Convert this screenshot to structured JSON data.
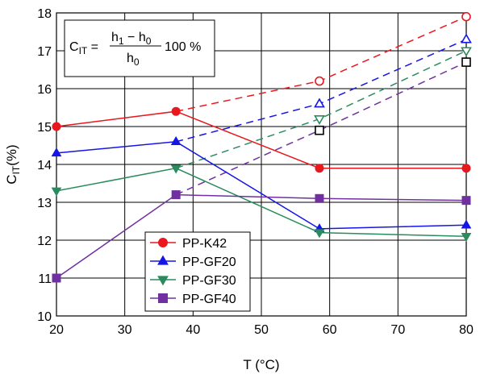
{
  "chart_data": {
    "type": "line",
    "xlabel": "T (°C)",
    "ylabel": {
      "main": "C",
      "sub": "IT",
      "unit": "(%)"
    },
    "xlim": [
      20,
      80
    ],
    "ylim": [
      10,
      18
    ],
    "xticks": [
      20,
      30,
      40,
      50,
      60,
      70,
      80
    ],
    "yticks": [
      10,
      11,
      12,
      13,
      14,
      15,
      16,
      17,
      18
    ],
    "grid": true,
    "legend_position": "bottom-left",
    "formula": {
      "lhs_main": "C",
      "lhs_sub": "IT",
      "numerator_a": "h",
      "numerator_a_sub": "1",
      "numerator_b": "h",
      "numerator_b_sub": "0",
      "denominator": "h",
      "denominator_sub": "0",
      "suffix": "100 %"
    },
    "series": [
      {
        "name": "PP-K42",
        "color": "#e8191e",
        "marker": "circle",
        "solid": [
          [
            20,
            15.0
          ],
          [
            37.5,
            15.4
          ],
          [
            58.5,
            13.9
          ],
          [
            80,
            13.9
          ]
        ],
        "dashed": [
          [
            37.5,
            15.4
          ],
          [
            58.5,
            16.2
          ],
          [
            80,
            17.9
          ]
        ],
        "open_markers": [
          [
            58.5,
            16.2
          ],
          [
            80,
            17.9
          ]
        ]
      },
      {
        "name": "PP-GF20",
        "color": "#1515e6",
        "marker": "triangle-up",
        "solid": [
          [
            20,
            14.3
          ],
          [
            37.5,
            14.6
          ],
          [
            58.5,
            12.3
          ],
          [
            80,
            12.4
          ]
        ],
        "dashed": [
          [
            37.5,
            14.6
          ],
          [
            58.5,
            15.6
          ],
          [
            80,
            17.3
          ]
        ],
        "open_markers": [
          [
            58.5,
            15.6
          ],
          [
            80,
            17.3
          ]
        ]
      },
      {
        "name": "PP-GF30",
        "color": "#2a8c5e",
        "marker": "triangle-down",
        "solid": [
          [
            20,
            13.3
          ],
          [
            37.5,
            13.9
          ],
          [
            58.5,
            12.2
          ],
          [
            80,
            12.1
          ]
        ],
        "dashed": [
          [
            37.5,
            13.9
          ],
          [
            58.5,
            15.2
          ],
          [
            80,
            17.0
          ]
        ],
        "open_markers": [
          [
            58.5,
            15.2
          ],
          [
            80,
            17.0
          ]
        ]
      },
      {
        "name": "PP-GF40",
        "color": "#7030a0",
        "marker": "square",
        "solid": [
          [
            20,
            11.0
          ],
          [
            37.5,
            13.2
          ],
          [
            58.5,
            13.1
          ],
          [
            80,
            13.05
          ]
        ],
        "dashed": [
          [
            37.5,
            13.2
          ],
          [
            58.5,
            14.9
          ],
          [
            80,
            16.7
          ]
        ],
        "open_markers": [
          [
            58.5,
            14.9
          ],
          [
            80,
            16.7
          ]
        ]
      }
    ]
  }
}
